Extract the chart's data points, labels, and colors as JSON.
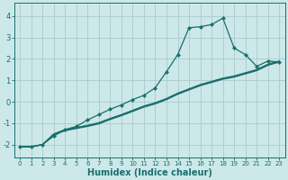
{
  "xlabel": "Humidex (Indice chaleur)",
  "bg_color": "#cce8e8",
  "grid_color": "#aacccc",
  "line_color": "#1a6e6e",
  "xlim": [
    -0.5,
    23.5
  ],
  "ylim": [
    -2.6,
    4.6
  ],
  "xticks": [
    0,
    1,
    2,
    3,
    4,
    5,
    6,
    7,
    8,
    9,
    10,
    11,
    12,
    13,
    14,
    15,
    16,
    17,
    18,
    19,
    20,
    21,
    22,
    23
  ],
  "yticks": [
    -2,
    -1,
    0,
    1,
    2,
    3,
    4
  ],
  "line1_x": [
    0,
    1,
    2,
    3,
    4,
    5,
    6,
    7,
    8,
    9,
    10,
    11,
    12,
    13,
    14,
    15,
    16,
    17,
    18,
    19,
    20,
    21,
    22,
    23
  ],
  "line1_y": [
    -2.1,
    -2.1,
    -2.0,
    -1.6,
    -1.3,
    -1.15,
    -0.85,
    -0.6,
    -0.35,
    -0.15,
    0.1,
    0.3,
    0.65,
    1.4,
    2.2,
    3.45,
    3.5,
    3.6,
    3.9,
    2.5,
    2.2,
    1.65,
    1.9,
    1.85
  ],
  "line2_x": [
    0,
    1,
    2,
    3,
    4,
    5,
    6,
    7,
    8,
    9,
    10,
    11,
    12,
    13,
    14,
    15,
    16,
    17,
    18,
    19,
    20,
    21,
    22,
    23
  ],
  "line2_y": [
    -2.1,
    -2.1,
    -2.0,
    -1.5,
    -1.3,
    -1.2,
    -1.1,
    -0.98,
    -0.78,
    -0.6,
    -0.4,
    -0.2,
    -0.05,
    0.15,
    0.4,
    0.6,
    0.8,
    0.95,
    1.1,
    1.2,
    1.35,
    1.5,
    1.75,
    1.9
  ],
  "line3_x": [
    0,
    1,
    2,
    3,
    4,
    5,
    6,
    7,
    8,
    9,
    10,
    11,
    12,
    13,
    14,
    15,
    16,
    17,
    18,
    19,
    20,
    21,
    22,
    23
  ],
  "line3_y": [
    -2.1,
    -2.1,
    -2.0,
    -1.52,
    -1.32,
    -1.22,
    -1.12,
    -1.0,
    -0.8,
    -0.62,
    -0.42,
    -0.22,
    -0.07,
    0.13,
    0.38,
    0.58,
    0.78,
    0.93,
    1.08,
    1.18,
    1.33,
    1.48,
    1.73,
    1.88
  ],
  "line4_x": [
    0,
    1,
    2,
    3,
    4,
    5,
    6,
    7,
    8,
    9,
    10,
    11,
    12,
    13,
    14,
    15,
    16,
    17,
    18,
    19,
    20,
    21,
    22,
    23
  ],
  "line4_y": [
    -2.1,
    -2.1,
    -2.0,
    -1.55,
    -1.35,
    -1.25,
    -1.15,
    -1.03,
    -0.83,
    -0.65,
    -0.45,
    -0.25,
    -0.1,
    0.1,
    0.35,
    0.55,
    0.75,
    0.9,
    1.05,
    1.15,
    1.3,
    1.45,
    1.7,
    1.85
  ]
}
